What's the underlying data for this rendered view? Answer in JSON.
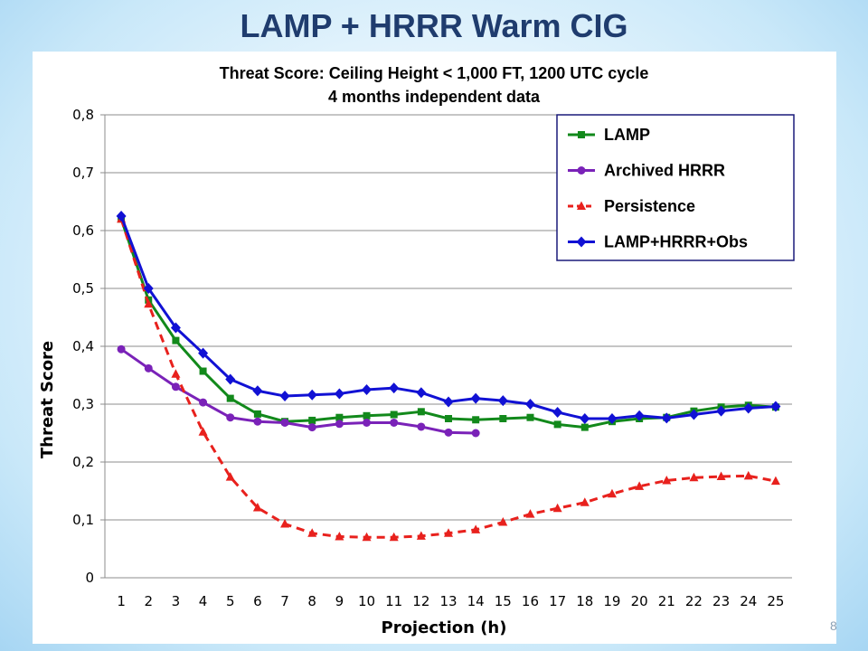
{
  "slide": {
    "title": "LAMP + HRRR Warm CIG",
    "number": "8"
  },
  "chart_data": {
    "type": "line",
    "title": "Threat Score: Ceiling Height < 1,000 FT, 1200 UTC cycle",
    "subtitle": "4 months independent data",
    "xlabel": "Projection (h)",
    "ylabel": "Threat Score",
    "x": [
      1,
      2,
      3,
      4,
      5,
      6,
      7,
      8,
      9,
      10,
      11,
      12,
      13,
      14,
      15,
      16,
      17,
      18,
      19,
      20,
      21,
      22,
      23,
      24,
      25
    ],
    "ylim": [
      0,
      0.8
    ],
    "yticks": [
      0,
      0.1,
      0.2,
      0.3,
      0.4,
      0.5,
      0.6,
      0.7,
      0.8
    ],
    "ytick_labels": [
      "0",
      "0,1",
      "0,2",
      "0,3",
      "0,4",
      "0,5",
      "0,6",
      "0,7",
      "0,8"
    ],
    "grid": "horizontal",
    "legend_position": "top-right",
    "series": [
      {
        "name": "LAMP",
        "color": "#12891b",
        "marker": "square",
        "dash": "solid",
        "values": [
          0.62,
          0.48,
          0.41,
          0.357,
          0.31,
          0.283,
          0.27,
          0.272,
          0.277,
          0.28,
          0.282,
          0.287,
          0.275,
          0.273,
          0.275,
          0.277,
          0.265,
          0.26,
          0.27,
          0.275,
          0.277,
          0.288,
          0.295,
          0.298,
          0.295
        ]
      },
      {
        "name": "Archived HRRR",
        "color": "#7a22b8",
        "marker": "circle",
        "dash": "solid",
        "values": [
          0.395,
          0.362,
          0.33,
          0.303,
          0.277,
          0.27,
          0.268,
          0.26,
          0.266,
          0.268,
          0.268,
          0.261,
          0.251,
          0.25,
          null,
          null,
          null,
          null,
          null,
          null,
          null,
          null,
          null,
          null,
          null
        ]
      },
      {
        "name": "Persistence",
        "color": "#e8211d",
        "marker": "triangle",
        "dash": "dashed",
        "values": [
          0.62,
          0.473,
          0.352,
          0.252,
          0.174,
          0.121,
          0.093,
          0.077,
          0.071,
          0.07,
          0.07,
          0.072,
          0.077,
          0.083,
          0.096,
          0.11,
          0.12,
          0.13,
          0.145,
          0.158,
          0.168,
          0.173,
          0.175,
          0.176,
          0.167
        ]
      },
      {
        "name": "LAMP+HRRR+Obs",
        "color": "#1111d4",
        "marker": "diamond",
        "dash": "solid",
        "values": [
          0.625,
          0.5,
          0.432,
          0.388,
          0.343,
          0.323,
          0.314,
          0.316,
          0.318,
          0.325,
          0.328,
          0.32,
          0.304,
          0.31,
          0.306,
          0.3,
          0.286,
          0.275,
          0.275,
          0.28,
          0.276,
          0.282,
          0.288,
          0.293,
          0.296
        ]
      }
    ]
  }
}
